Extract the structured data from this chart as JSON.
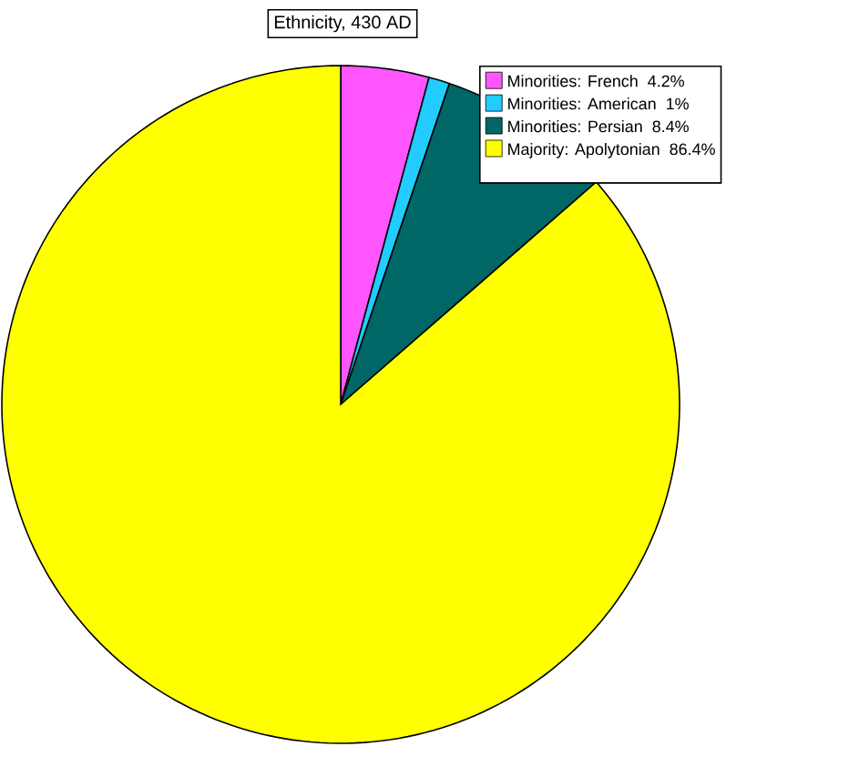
{
  "chart_data": {
    "type": "pie",
    "title": "Ethnicity, 430 AD",
    "categories": [
      "Minorities: French",
      "Minorities: American",
      "Minorities: Persian",
      "Majority: Apolytonian"
    ],
    "values": [
      4.2,
      1,
      8.4,
      86.4
    ],
    "value_labels": [
      "4.2%",
      "1%",
      "8.4%",
      "86.4%"
    ],
    "colors": [
      "#ff55ff",
      "#22ccff",
      "#006666",
      "#ffff00"
    ],
    "legend": "top right"
  }
}
